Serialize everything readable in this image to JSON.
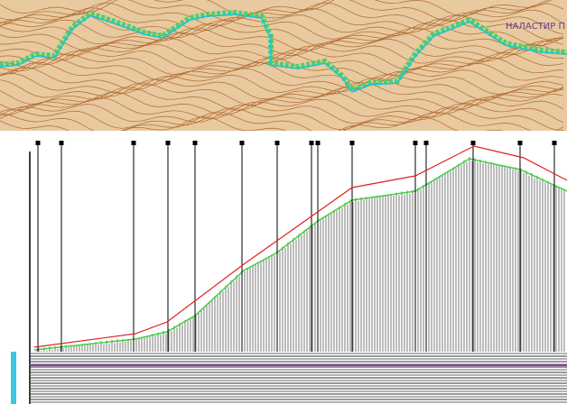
{
  "map": {
    "label": "НАЛАСТИР П"
  }
}
